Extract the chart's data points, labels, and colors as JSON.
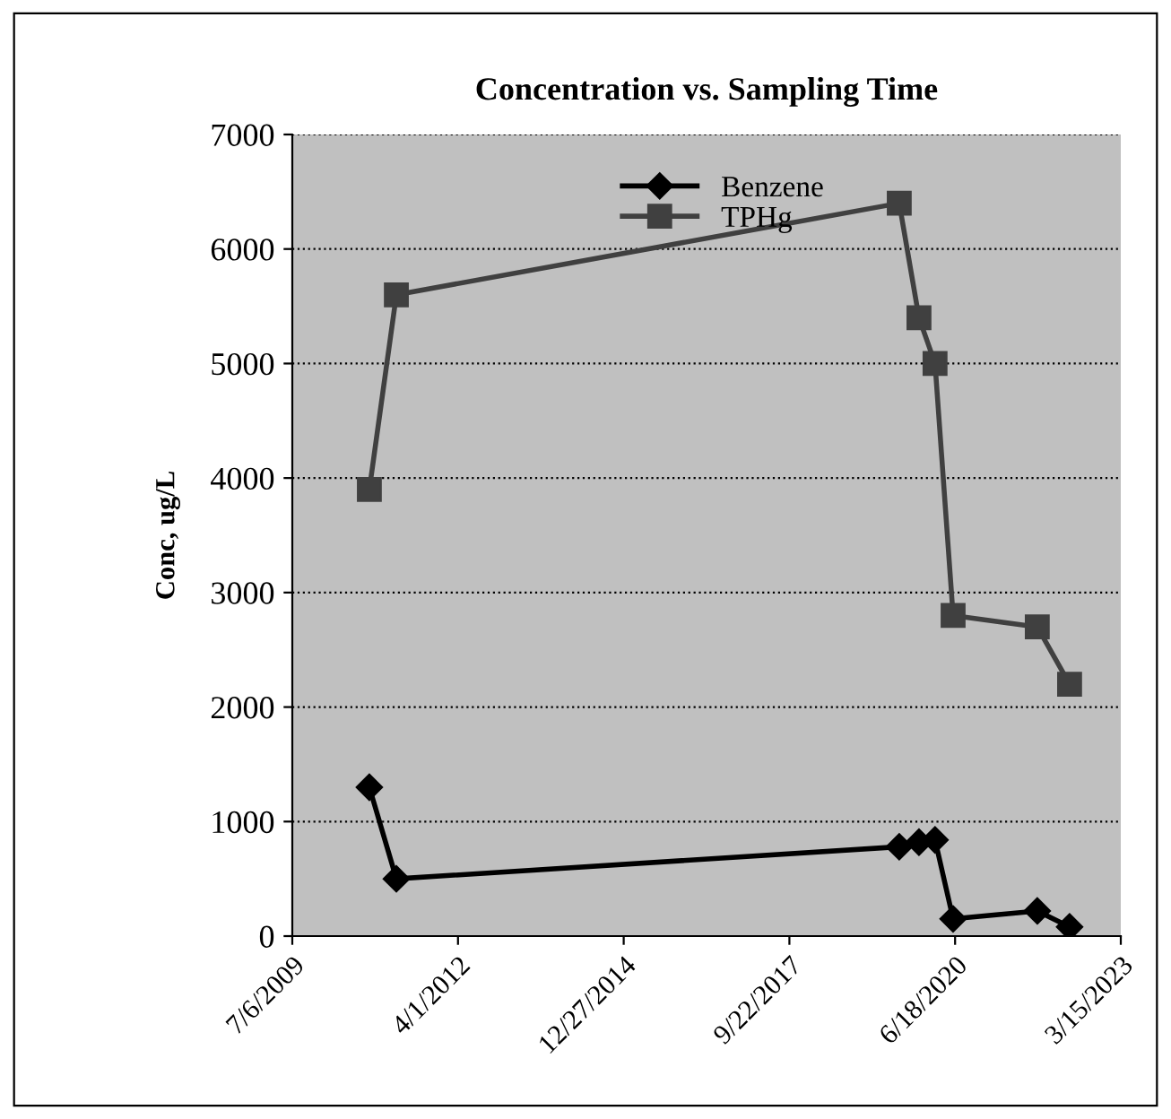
{
  "chart_data": {
    "type": "line",
    "title": "Concentration vs. Sampling Time",
    "ylabel": "Conc, ug/L",
    "x": [
      "2010-10-14",
      "2011-03-26",
      "2019-07-17",
      "2019-11-13",
      "2020-02-18",
      "2020-06-06",
      "2021-10-27",
      "2022-05-10"
    ],
    "series": [
      {
        "name": "Benzene",
        "color": "#000000",
        "marker": "diamond",
        "values": [
          1300,
          500,
          780,
          820,
          840,
          150,
          220,
          80
        ]
      },
      {
        "name": "TPHg",
        "color": "#404040",
        "marker": "square",
        "values": [
          3900,
          5600,
          6400,
          5400,
          5000,
          2800,
          2700,
          2200
        ]
      }
    ],
    "xlim": [
      "2009-07-06",
      "2023-03-15"
    ],
    "xticks": [
      {
        "value": "2009-07-06",
        "label": "7/6/2009"
      },
      {
        "value": "2012-04-01",
        "label": "4/1/2012"
      },
      {
        "value": "2014-12-27",
        "label": "12/27/2014"
      },
      {
        "value": "2017-09-22",
        "label": "9/22/2017"
      },
      {
        "value": "2020-06-18",
        "label": "6/18/2020"
      },
      {
        "value": "2023-03-15",
        "label": "3/15/2023"
      }
    ],
    "ylim": [
      0,
      7000
    ],
    "yticks": [
      0,
      1000,
      2000,
      3000,
      4000,
      5000,
      6000,
      7000
    ],
    "grid": "y",
    "legend": "top",
    "line_style": "solid"
  }
}
